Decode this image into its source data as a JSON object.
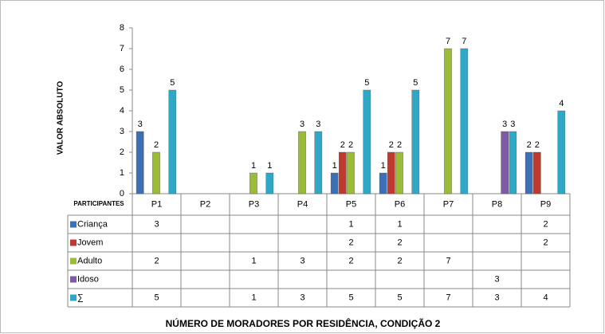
{
  "chart_data": {
    "type": "bar",
    "title": "NÚMERO DE MORADORES POR RESIDÊNCIA, CONDIÇÃO 2",
    "y_label": "VALOR ABSOLUTO",
    "table_header": "PARTICIPANTES",
    "categories": [
      "P1",
      "P2",
      "P3",
      "P4",
      "P5",
      "P6",
      "P7",
      "P8",
      "P9"
    ],
    "series": [
      {
        "name": "Criança",
        "color": "#3d6fb6",
        "values": [
          3,
          null,
          null,
          null,
          1,
          1,
          null,
          null,
          2
        ]
      },
      {
        "name": "Jovem",
        "color": "#c0392f",
        "values": [
          null,
          null,
          null,
          null,
          2,
          2,
          null,
          null,
          2
        ]
      },
      {
        "name": "Adulto",
        "color": "#9bbb3a",
        "values": [
          2,
          null,
          1,
          3,
          2,
          2,
          7,
          null,
          null
        ]
      },
      {
        "name": "Idoso",
        "color": "#7d5ba6",
        "values": [
          null,
          null,
          null,
          null,
          null,
          null,
          null,
          3,
          null
        ]
      },
      {
        "name": "∑",
        "color": "#2fa8c8",
        "values": [
          5,
          null,
          1,
          3,
          5,
          5,
          7,
          3,
          4
        ]
      }
    ],
    "ylim": [
      0,
      8
    ],
    "yticks": [
      0,
      1,
      2,
      3,
      4,
      5,
      6,
      7,
      8
    ],
    "data_table": true
  }
}
